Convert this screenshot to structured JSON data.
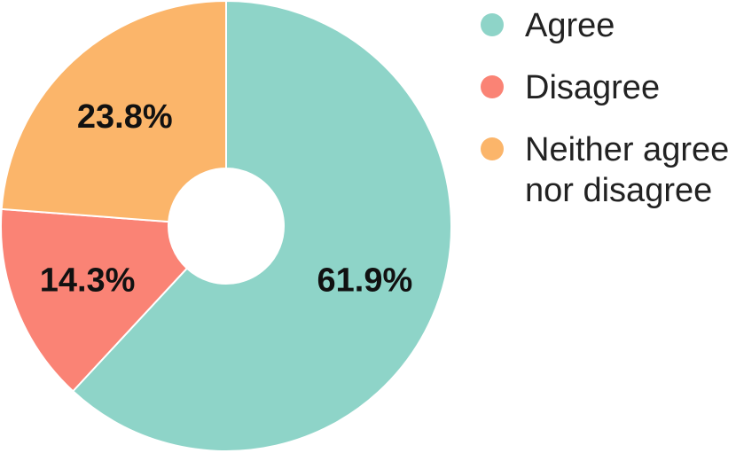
{
  "chart_data": {
    "type": "pie",
    "variant": "donut",
    "slices": [
      {
        "label": "Agree",
        "value": 61.9,
        "display": "61.9%",
        "color": "#8ed4c8"
      },
      {
        "label": "Disagree",
        "value": 14.3,
        "display": "14.3%",
        "color": "#fa8375"
      },
      {
        "label": "Neither agree nor disagree",
        "value": 23.8,
        "display": "23.8%",
        "color": "#fbb56a"
      }
    ],
    "legend_position": "right"
  },
  "legend": {
    "items": [
      {
        "label": "Agree",
        "color": "#8ed4c8"
      },
      {
        "label": "Disagree",
        "color": "#fa8375"
      },
      {
        "label": "Neither agree nor disagree",
        "color": "#fbb56a"
      }
    ]
  }
}
